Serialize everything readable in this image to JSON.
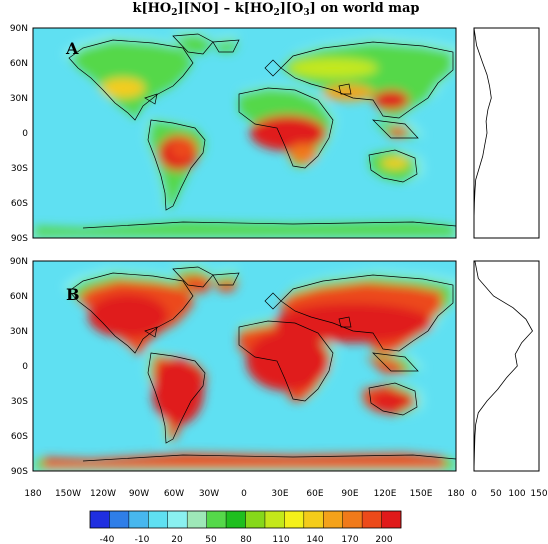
{
  "figure": {
    "title_parts": [
      "k[HO",
      "2",
      "][NO] – k[HO",
      "2",
      "][O",
      "3",
      "] on world map"
    ]
  },
  "panels": [
    {
      "label": "A"
    },
    {
      "label": "B"
    }
  ],
  "lat_ticks": [
    "90N",
    "60N",
    "30N",
    "0",
    "30S",
    "60S",
    "90S"
  ],
  "lon_ticks": [
    "180",
    "150W",
    "120W",
    "90W",
    "60W",
    "30W",
    "0",
    "30E",
    "60E",
    "90E",
    "120E",
    "150E",
    "180"
  ],
  "profile_ticks": [
    "0",
    "50",
    "100",
    "150"
  ],
  "colorbar": {
    "labels": [
      "-40",
      "-10",
      "20",
      "50",
      "80",
      "110",
      "140",
      "170",
      "200"
    ],
    "colors": [
      "#1f2fe0",
      "#2f7ee8",
      "#47b7ee",
      "#5fe0f2",
      "#8af0f0",
      "#9ee8b8",
      "#55d84a",
      "#1fbf1f",
      "#86d81a",
      "#c4e81a",
      "#f4f01a",
      "#f4cc1a",
      "#f4a21a",
      "#f07a1a",
      "#ec4a1a",
      "#e01a1a"
    ]
  },
  "chart_data": {
    "type": "heatmap",
    "xlabel": "",
    "ylabel": "",
    "x_range": [
      "180W",
      "180E"
    ],
    "y_range": [
      "90S",
      "90N"
    ],
    "colorbar_range": [
      -40,
      200
    ],
    "profiles": [
      {
        "panel": "A",
        "xlim": [
          0,
          150
        ],
        "lat": [
          90,
          75,
          60,
          50,
          40,
          30,
          20,
          10,
          0,
          -10,
          -20,
          -30,
          -40,
          -50,
          -60,
          -75,
          -90
        ],
        "values": [
          0,
          6,
          20,
          30,
          36,
          40,
          32,
          28,
          30,
          25,
          20,
          12,
          4,
          2,
          1,
          0,
          0
        ]
      },
      {
        "panel": "B",
        "xlim": [
          0,
          150
        ],
        "lat": [
          90,
          75,
          60,
          50,
          40,
          30,
          20,
          10,
          0,
          -10,
          -20,
          -30,
          -40,
          -50,
          -60,
          -75,
          -90
        ],
        "values": [
          2,
          10,
          45,
          90,
          120,
          135,
          110,
          95,
          100,
          75,
          55,
          30,
          10,
          4,
          2,
          1,
          0
        ]
      }
    ]
  }
}
